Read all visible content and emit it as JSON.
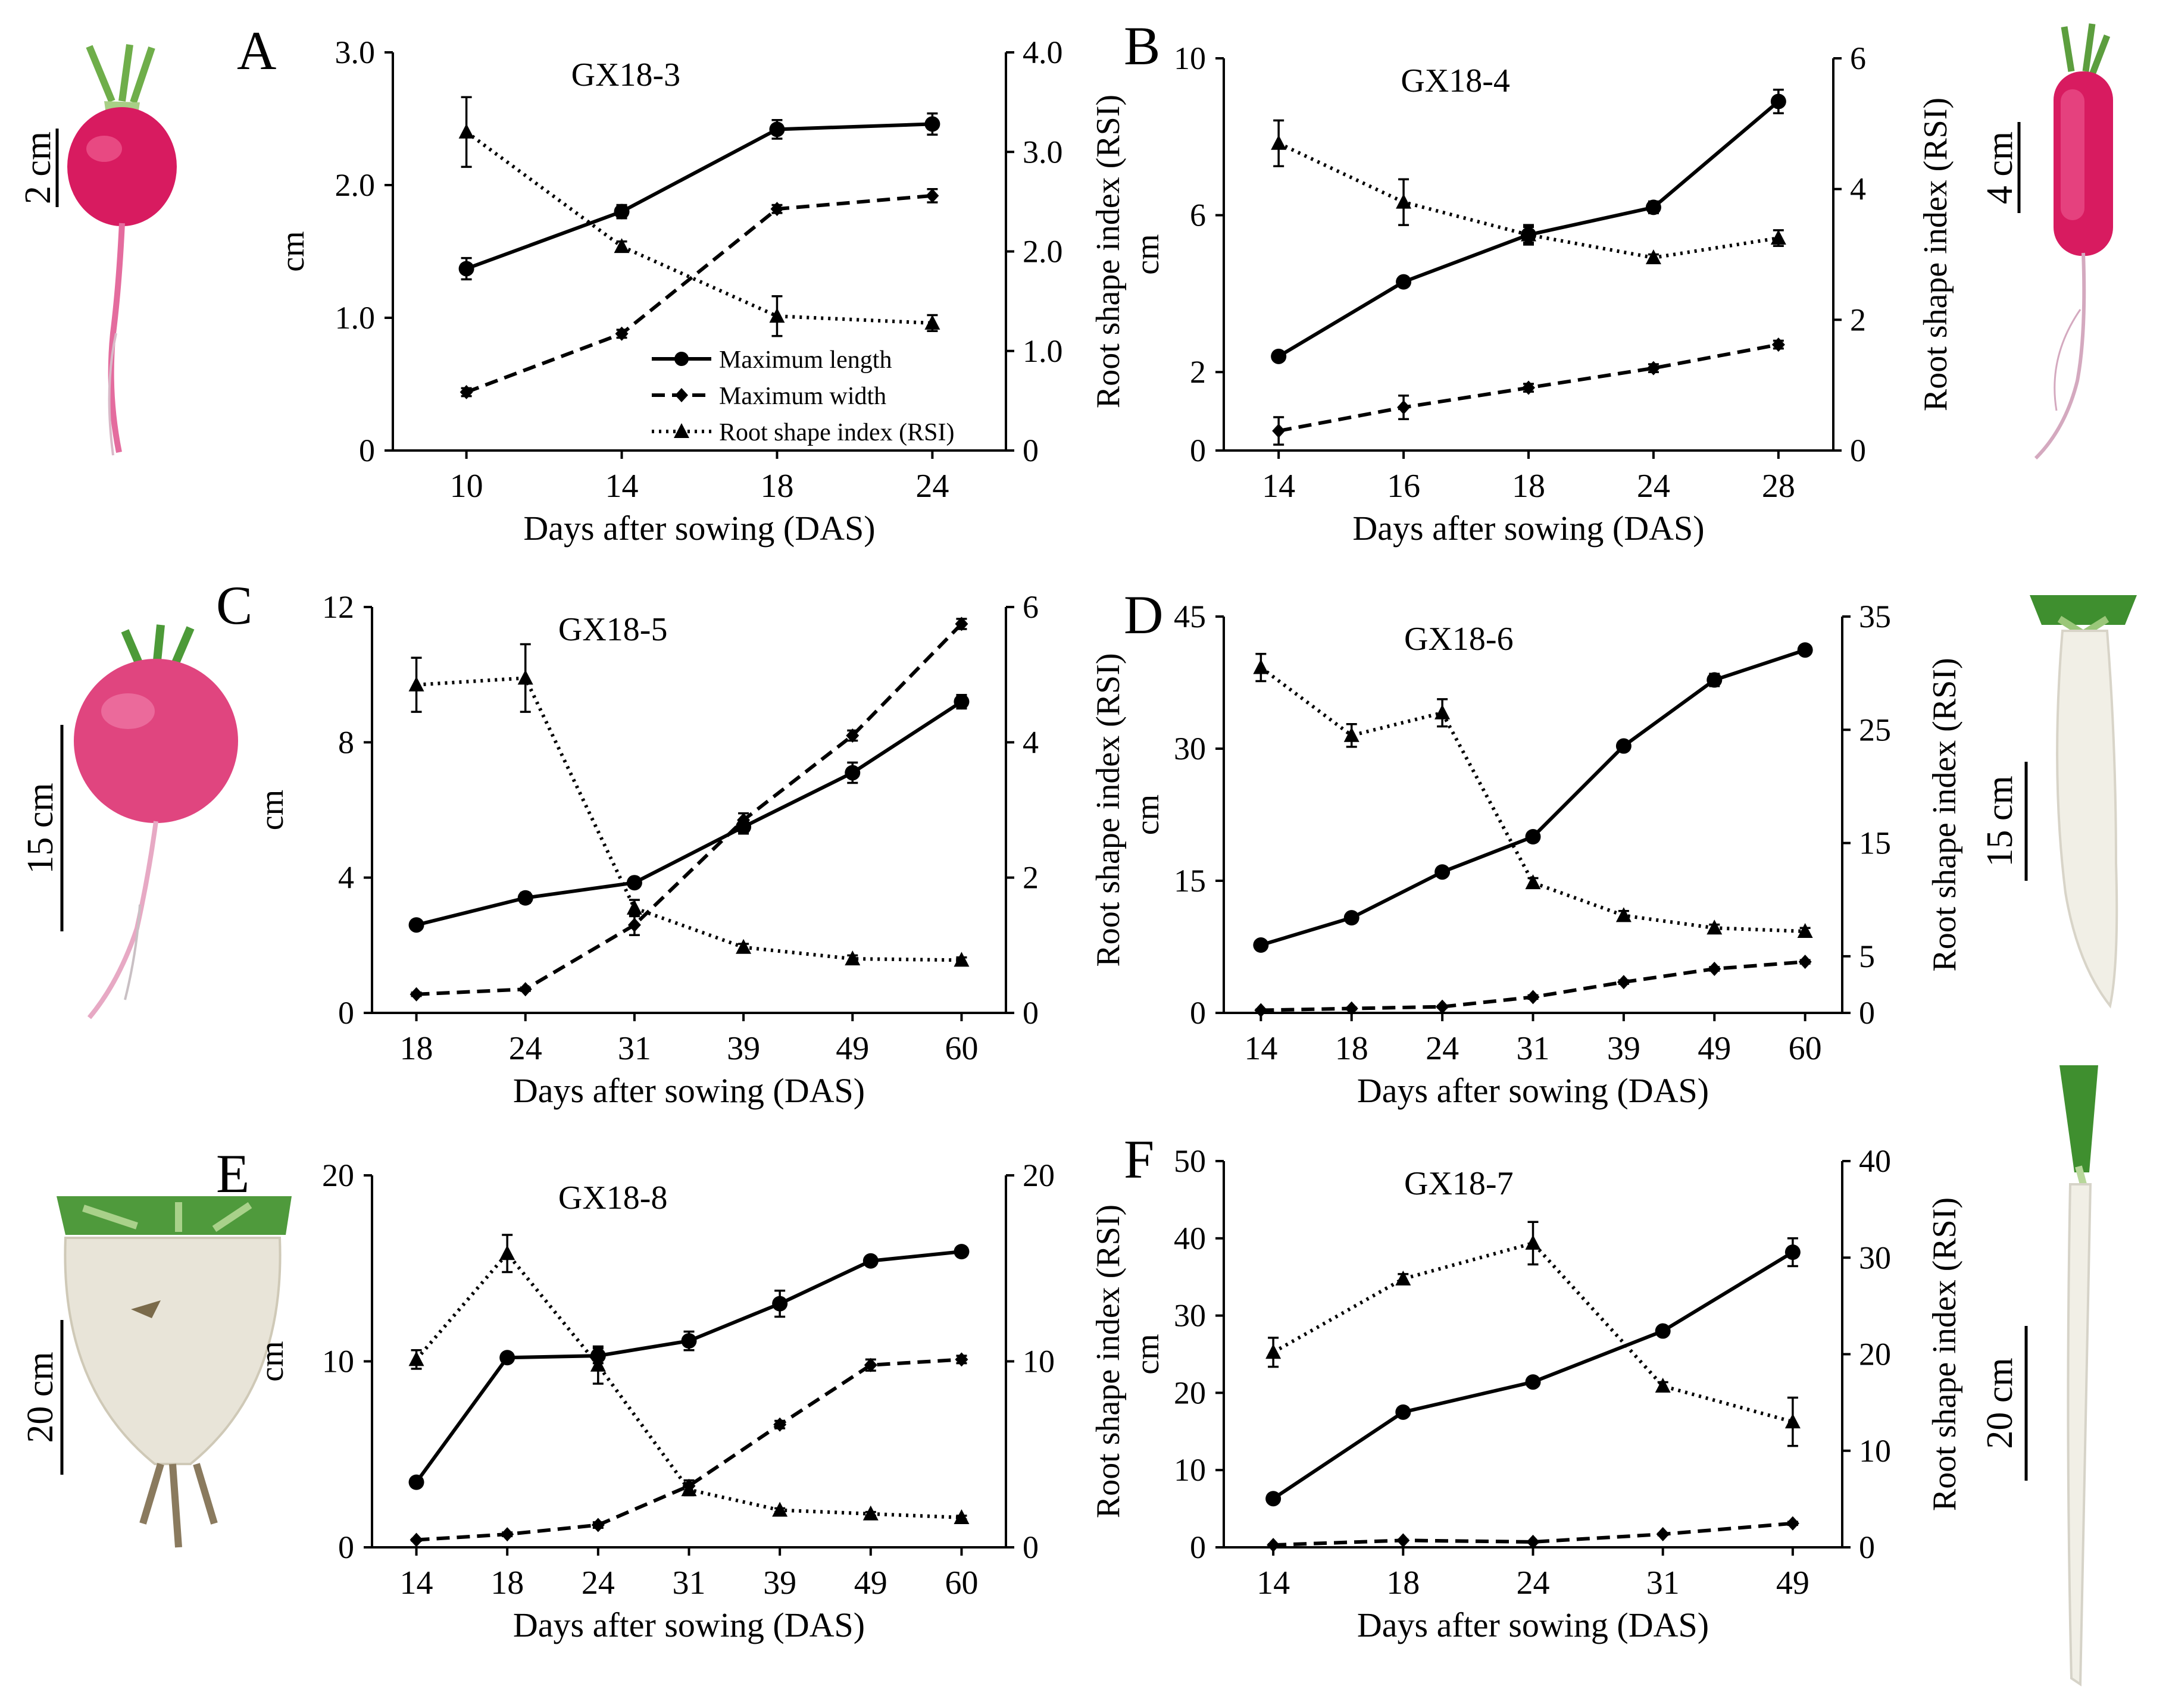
{
  "legend": {
    "length": "Maximum length",
    "width": "Maximum width",
    "rsi": "Root shape index (RSI)"
  },
  "colors": {
    "ink": "#000000",
    "pink_radish": "#d81b60",
    "pink_light": "#f3b7cf",
    "white_radish": "#f1efe6",
    "turnip_body": "#e8e4d8",
    "leaf_green": "#3f8f2f",
    "stem_green": "#b7d79a"
  },
  "specimens": {
    "A": {
      "scale": "2 cm"
    },
    "B": {
      "scale": "4 cm"
    },
    "C": {
      "scale": "15 cm"
    },
    "D": {
      "scale": "15 cm"
    },
    "E": {
      "scale": "20 cm"
    },
    "F": {
      "scale": "20 cm"
    }
  },
  "chart_data": [
    {
      "panel": "A",
      "type": "line",
      "title": "GX18-3",
      "xlabel": "Days after sowing (DAS)",
      "ylabel": "cm",
      "y2label": "Root shape index (RSI)",
      "categories": [
        "10",
        "14",
        "18",
        "24"
      ],
      "ylim": [
        0,
        3
      ],
      "yticks": [
        "0",
        "1.0",
        "2.0",
        "3.0"
      ],
      "y2lim": [
        0,
        4
      ],
      "y2ticks": [
        "0",
        "1.0",
        "2.0",
        "3.0",
        "4.0"
      ],
      "legend": "inside bottom-right",
      "series": [
        {
          "name": "Maximum length",
          "axis": "left",
          "values": [
            1.37,
            1.8,
            2.42,
            2.46
          ],
          "err": [
            0.08,
            0.05,
            0.07,
            0.08
          ]
        },
        {
          "name": "Maximum width",
          "axis": "left",
          "values": [
            0.44,
            0.88,
            1.82,
            1.92
          ],
          "err": [
            0.03,
            0.03,
            0.03,
            0.05
          ]
        },
        {
          "name": "Root shape index (RSI)",
          "axis": "right",
          "values": [
            3.2,
            2.05,
            1.35,
            1.28
          ],
          "err": [
            0.35,
            0.05,
            0.2,
            0.08
          ]
        }
      ]
    },
    {
      "panel": "B",
      "type": "line",
      "title": "GX18-4",
      "xlabel": "Days after sowing (DAS)",
      "ylabel": "cm",
      "y2label": "Root shape index (RSI)",
      "categories": [
        "14",
        "16",
        "18",
        "24",
        "28"
      ],
      "ylim": [
        0,
        10
      ],
      "yticks": [
        "0",
        "2",
        "6",
        "10"
      ],
      "y2lim": [
        0,
        6
      ],
      "y2ticks": [
        "0",
        "2",
        "4",
        "6"
      ],
      "series": [
        {
          "name": "Maximum length",
          "axis": "left",
          "values": [
            2.4,
            4.3,
            5.5,
            6.2,
            8.9
          ],
          "err": [
            0.1,
            0.1,
            0.2,
            0.15,
            0.3
          ]
        },
        {
          "name": "Maximum width",
          "axis": "left",
          "values": [
            0.5,
            1.1,
            1.6,
            2.1,
            2.7
          ],
          "err": [
            0.35,
            0.3,
            0.1,
            0.1,
            0.1
          ]
        },
        {
          "name": "Root shape index (RSI)",
          "axis": "right",
          "values": [
            4.7,
            3.8,
            3.3,
            2.95,
            3.25
          ],
          "err": [
            0.35,
            0.35,
            0.15,
            0.05,
            0.12
          ]
        }
      ]
    },
    {
      "panel": "C",
      "type": "line",
      "title": "GX18-5",
      "xlabel": "Days after sowing (DAS)",
      "ylabel": "cm",
      "y2label": "Root shape index (RSI)",
      "categories": [
        "18",
        "24",
        "31",
        "39",
        "49",
        "60"
      ],
      "ylim": [
        0,
        12
      ],
      "yticks": [
        "0",
        "4",
        "8",
        "12"
      ],
      "y2lim": [
        0,
        6
      ],
      "y2ticks": [
        "0",
        "2",
        "4",
        "6"
      ],
      "series": [
        {
          "name": "Maximum length",
          "axis": "left",
          "values": [
            2.6,
            3.4,
            3.85,
            5.5,
            7.1,
            9.2
          ],
          "err": [
            0.1,
            0.15,
            0.1,
            0.2,
            0.3,
            0.2
          ]
        },
        {
          "name": "Maximum width",
          "axis": "left",
          "values": [
            0.55,
            0.7,
            2.6,
            5.7,
            8.2,
            11.5
          ],
          "err": [
            0.05,
            0.05,
            0.3,
            0.2,
            0.15,
            0.15
          ]
        },
        {
          "name": "Root shape index (RSI)",
          "axis": "right",
          "values": [
            4.85,
            4.95,
            1.55,
            0.97,
            0.8,
            0.78
          ],
          "err": [
            0.4,
            0.5,
            0.12,
            0.05,
            0.05,
            0.04
          ]
        }
      ]
    },
    {
      "panel": "D",
      "type": "line",
      "title": "GX18-6",
      "xlabel": "Days after sowing (DAS)",
      "ylabel": "cm",
      "y2label": "Root shape index (RSI)",
      "categories": [
        "14",
        "18",
        "24",
        "31",
        "39",
        "49",
        "60"
      ],
      "ylim": [
        0,
        45
      ],
      "yticks": [
        "0",
        "15",
        "30",
        "45"
      ],
      "y2lim": [
        0,
        35
      ],
      "y2ticks": [
        "0",
        "5",
        "15",
        "25",
        "35"
      ],
      "series": [
        {
          "name": "Maximum length",
          "axis": "left",
          "values": [
            7.7,
            10.8,
            16.0,
            20.0,
            30.3,
            37.8,
            41.2
          ],
          "err": [
            0.3,
            0.3,
            0.4,
            0.4,
            0.5,
            0.7,
            0.5
          ]
        },
        {
          "name": "Maximum width",
          "axis": "left",
          "values": [
            0.3,
            0.5,
            0.7,
            1.8,
            3.5,
            5.0,
            5.8
          ],
          "err": [
            0.1,
            0.1,
            0.1,
            0.2,
            0.2,
            0.2,
            0.2
          ]
        },
        {
          "name": "Root shape index (RSI)",
          "axis": "right",
          "values": [
            30.5,
            24.5,
            26.5,
            11.5,
            8.6,
            7.5,
            7.2
          ],
          "err": [
            1.2,
            1.0,
            1.2,
            0.4,
            0.4,
            0.3,
            0.3
          ]
        }
      ]
    },
    {
      "panel": "E",
      "type": "line",
      "title": "GX18-8",
      "xlabel": "Days after sowing (DAS)",
      "ylabel": "cm",
      "y2label": "Root shape index (RSI)",
      "categories": [
        "14",
        "18",
        "24",
        "31",
        "39",
        "49",
        "60"
      ],
      "ylim": [
        0,
        20
      ],
      "yticks": [
        "0",
        "10",
        "20"
      ],
      "y2lim": [
        0,
        20
      ],
      "y2ticks": [
        "0",
        "10",
        "20"
      ],
      "series": [
        {
          "name": "Maximum length",
          "axis": "left",
          "values": [
            3.5,
            10.2,
            10.3,
            11.1,
            13.1,
            15.4,
            15.9
          ],
          "err": [
            0.2,
            0.2,
            0.4,
            0.5,
            0.7,
            0.2,
            0.2
          ]
        },
        {
          "name": "Maximum width",
          "axis": "left",
          "values": [
            0.4,
            0.7,
            1.2,
            3.3,
            6.6,
            9.8,
            10.1
          ],
          "err": [
            0.05,
            0.1,
            0.15,
            0.3,
            0.2,
            0.3,
            0.2
          ]
        },
        {
          "name": "Root shape index (RSI)",
          "axis": "right",
          "values": [
            10.1,
            15.8,
            9.8,
            3.1,
            2.0,
            1.8,
            1.6
          ],
          "err": [
            0.5,
            1.0,
            1.0,
            0.3,
            0.1,
            0.1,
            0.1
          ]
        }
      ]
    },
    {
      "panel": "F",
      "type": "line",
      "title": "GX18-7",
      "xlabel": "Days after sowing (DAS)",
      "ylabel": "cm",
      "y2label": "Root shape index (RSI)",
      "categories": [
        "14",
        "18",
        "24",
        "31",
        "49"
      ],
      "ylim": [
        0,
        50
      ],
      "yticks": [
        "0",
        "10",
        "20",
        "30",
        "40",
        "50"
      ],
      "y2lim": [
        0,
        40
      ],
      "y2ticks": [
        "0",
        "10",
        "20",
        "30",
        "40"
      ],
      "series": [
        {
          "name": "Maximum length",
          "axis": "left",
          "values": [
            6.3,
            17.5,
            21.4,
            28.0,
            38.2
          ],
          "err": [
            0.3,
            0.4,
            0.4,
            0.4,
            1.8
          ]
        },
        {
          "name": "Maximum width",
          "axis": "left",
          "values": [
            0.3,
            0.9,
            0.7,
            1.7,
            3.1
          ],
          "err": [
            0.1,
            0.1,
            0.1,
            0.1,
            0.2
          ]
        },
        {
          "name": "Root shape index (RSI)",
          "axis": "right",
          "values": [
            20.2,
            27.8,
            31.5,
            16.7,
            13.0
          ],
          "err": [
            1.5,
            0.5,
            2.2,
            0.4,
            2.5
          ]
        }
      ]
    }
  ]
}
